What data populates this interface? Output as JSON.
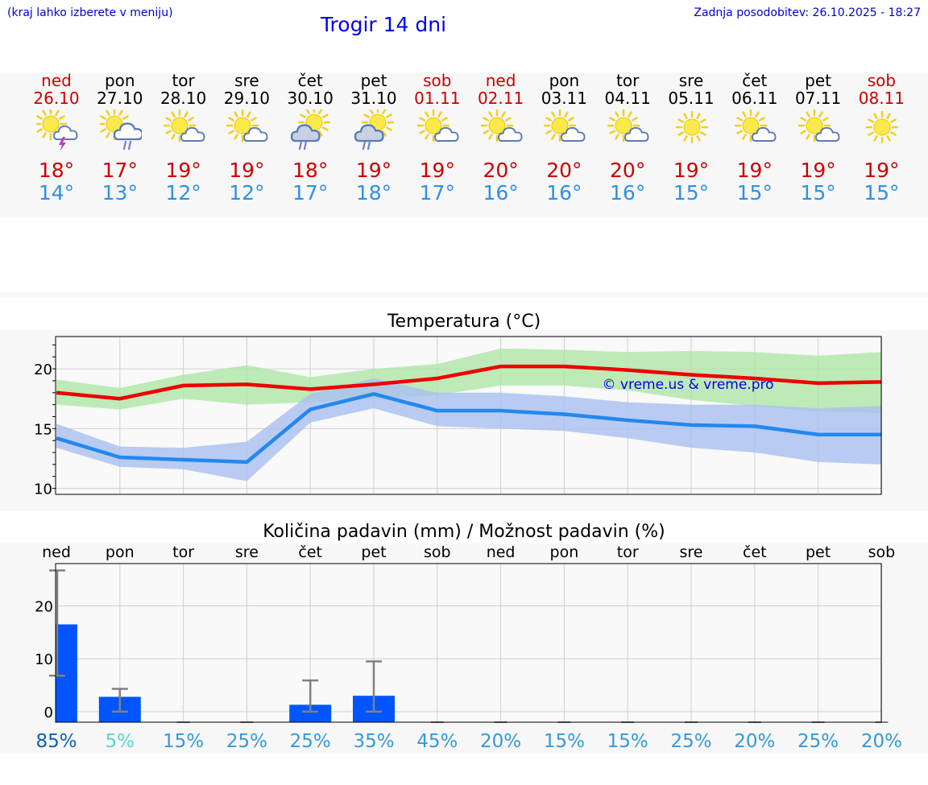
{
  "header": {
    "hint": "(kraj lahko izberete v meniju)",
    "title": "Trogir 14 dni",
    "updated": "Zadnja posodobitev: 26.10.2025 - 18:27"
  },
  "watermark": "© vreme.us & vreme.pro",
  "colors": {
    "weekend": "#cc0000",
    "weekday": "#000000",
    "tmax": "#ee0000",
    "tmin": "#2288ee",
    "tmax_band": "#aee6a6",
    "tmin_band": "#a9bff0",
    "bar": "#0055ff",
    "err": "#808080"
  },
  "days": [
    {
      "name": "ned",
      "date": "26.10",
      "weekend": true,
      "icon": "sun-cloud-thunder-icon",
      "tmax": "18°",
      "tmin": "14°"
    },
    {
      "name": "pon",
      "date": "27.10",
      "weekend": false,
      "icon": "sun-cloud-rain-icon",
      "tmax": "17°",
      "tmin": "13°"
    },
    {
      "name": "tor",
      "date": "28.10",
      "weekend": false,
      "icon": "sun-small-cloud-icon",
      "tmax": "19°",
      "tmin": "12°"
    },
    {
      "name": "sre",
      "date": "29.10",
      "weekend": false,
      "icon": "sun-small-cloud-icon",
      "tmax": "19°",
      "tmin": "12°"
    },
    {
      "name": "čet",
      "date": "30.10",
      "weekend": false,
      "icon": "cloud-sun-rain-icon",
      "tmax": "18°",
      "tmin": "17°"
    },
    {
      "name": "pet",
      "date": "31.10",
      "weekend": false,
      "icon": "cloud-sun-rain-icon",
      "tmax": "19°",
      "tmin": "18°"
    },
    {
      "name": "sob",
      "date": "01.11",
      "weekend": true,
      "icon": "sun-small-cloud-icon",
      "tmax": "19°",
      "tmin": "17°"
    },
    {
      "name": "ned",
      "date": "02.11",
      "weekend": true,
      "icon": "sun-small-cloud-icon",
      "tmax": "20°",
      "tmin": "16°"
    },
    {
      "name": "pon",
      "date": "03.11",
      "weekend": false,
      "icon": "sun-small-cloud-icon",
      "tmax": "20°",
      "tmin": "16°"
    },
    {
      "name": "tor",
      "date": "04.11",
      "weekend": false,
      "icon": "sun-small-cloud-icon",
      "tmax": "20°",
      "tmin": "16°"
    },
    {
      "name": "sre",
      "date": "05.11",
      "weekend": false,
      "icon": "sun-icon",
      "tmax": "19°",
      "tmin": "15°"
    },
    {
      "name": "čet",
      "date": "06.11",
      "weekend": false,
      "icon": "sun-small-cloud-icon",
      "tmax": "19°",
      "tmin": "15°"
    },
    {
      "name": "pet",
      "date": "07.11",
      "weekend": false,
      "icon": "sun-small-cloud-icon",
      "tmax": "19°",
      "tmin": "15°"
    },
    {
      "name": "sob",
      "date": "08.11",
      "weekend": true,
      "icon": "sun-icon",
      "tmax": "19°",
      "tmin": "15°"
    }
  ],
  "chart_data": [
    {
      "type": "line",
      "title": "Temperatura (°C)",
      "x": [
        "26.10",
        "27.10",
        "28.10",
        "29.10",
        "30.10",
        "31.10",
        "01.11",
        "02.11",
        "03.11",
        "04.11",
        "05.11",
        "06.11",
        "07.11",
        "08.11"
      ],
      "ylim": [
        9.5,
        22.7
      ],
      "yticks": [
        10,
        15,
        20
      ],
      "grid": true,
      "series": [
        {
          "key": "tmax",
          "values": [
            18.0,
            17.5,
            18.6,
            18.7,
            18.3,
            18.7,
            19.2,
            20.2,
            20.2,
            19.9,
            19.5,
            19.2,
            18.8,
            18.9
          ],
          "band_low": [
            17.0,
            16.6,
            17.5,
            17.0,
            17.2,
            17.5,
            17.8,
            18.6,
            18.6,
            18.2,
            17.4,
            16.9,
            16.4,
            16.3
          ],
          "band_high": [
            19.1,
            18.4,
            19.5,
            20.3,
            19.3,
            20.0,
            20.4,
            21.7,
            21.6,
            21.4,
            21.5,
            21.4,
            21.1,
            21.4
          ]
        },
        {
          "key": "tmin",
          "values": [
            14.2,
            12.6,
            12.4,
            12.2,
            16.6,
            17.9,
            16.5,
            16.5,
            16.2,
            15.7,
            15.3,
            15.2,
            14.5,
            14.5
          ],
          "band_low": [
            13.4,
            11.8,
            11.6,
            10.6,
            15.5,
            16.7,
            15.2,
            15.0,
            14.8,
            14.2,
            13.4,
            13.0,
            12.2,
            12.0
          ],
          "band_high": [
            15.4,
            13.5,
            13.4,
            13.9,
            17.9,
            19.2,
            18.0,
            18.0,
            17.7,
            17.2,
            17.0,
            17.0,
            16.7,
            16.9
          ]
        }
      ]
    },
    {
      "type": "bar",
      "title": "Količina padavin (mm) / Možnost padavin (%)",
      "categories": [
        "ned",
        "pon",
        "tor",
        "sre",
        "čet",
        "pet",
        "sob",
        "ned",
        "pon",
        "tor",
        "sre",
        "čet",
        "pet",
        "sob"
      ],
      "values": [
        16.5,
        2.8,
        0,
        0,
        1.3,
        3.0,
        0,
        0,
        0,
        0,
        0,
        0,
        0,
        0
      ],
      "err_low": [
        6.8,
        0,
        0,
        0,
        0,
        0,
        0,
        0,
        0,
        0,
        0,
        0,
        0,
        0
      ],
      "err_high": [
        26.7,
        4.3,
        0,
        0,
        5.9,
        9.5,
        0,
        0,
        0,
        0,
        0,
        0,
        0,
        0
      ],
      "chance": [
        "85%",
        "5%",
        "15%",
        "25%",
        "25%",
        "35%",
        "45%",
        "20%",
        "15%",
        "15%",
        "25%",
        "20%",
        "25%",
        "20%"
      ],
      "chance_colors": [
        "#1060b0",
        "#55d8d8",
        "#3399dd",
        "#3399dd",
        "#3399dd",
        "#3399dd",
        "#3399dd",
        "#3399dd",
        "#3399dd",
        "#3399dd",
        "#3399dd",
        "#3399dd",
        "#3399dd",
        "#3399dd"
      ],
      "ylim": [
        -2,
        28
      ],
      "yticks": [
        0,
        10,
        20
      ],
      "grid": true
    }
  ]
}
